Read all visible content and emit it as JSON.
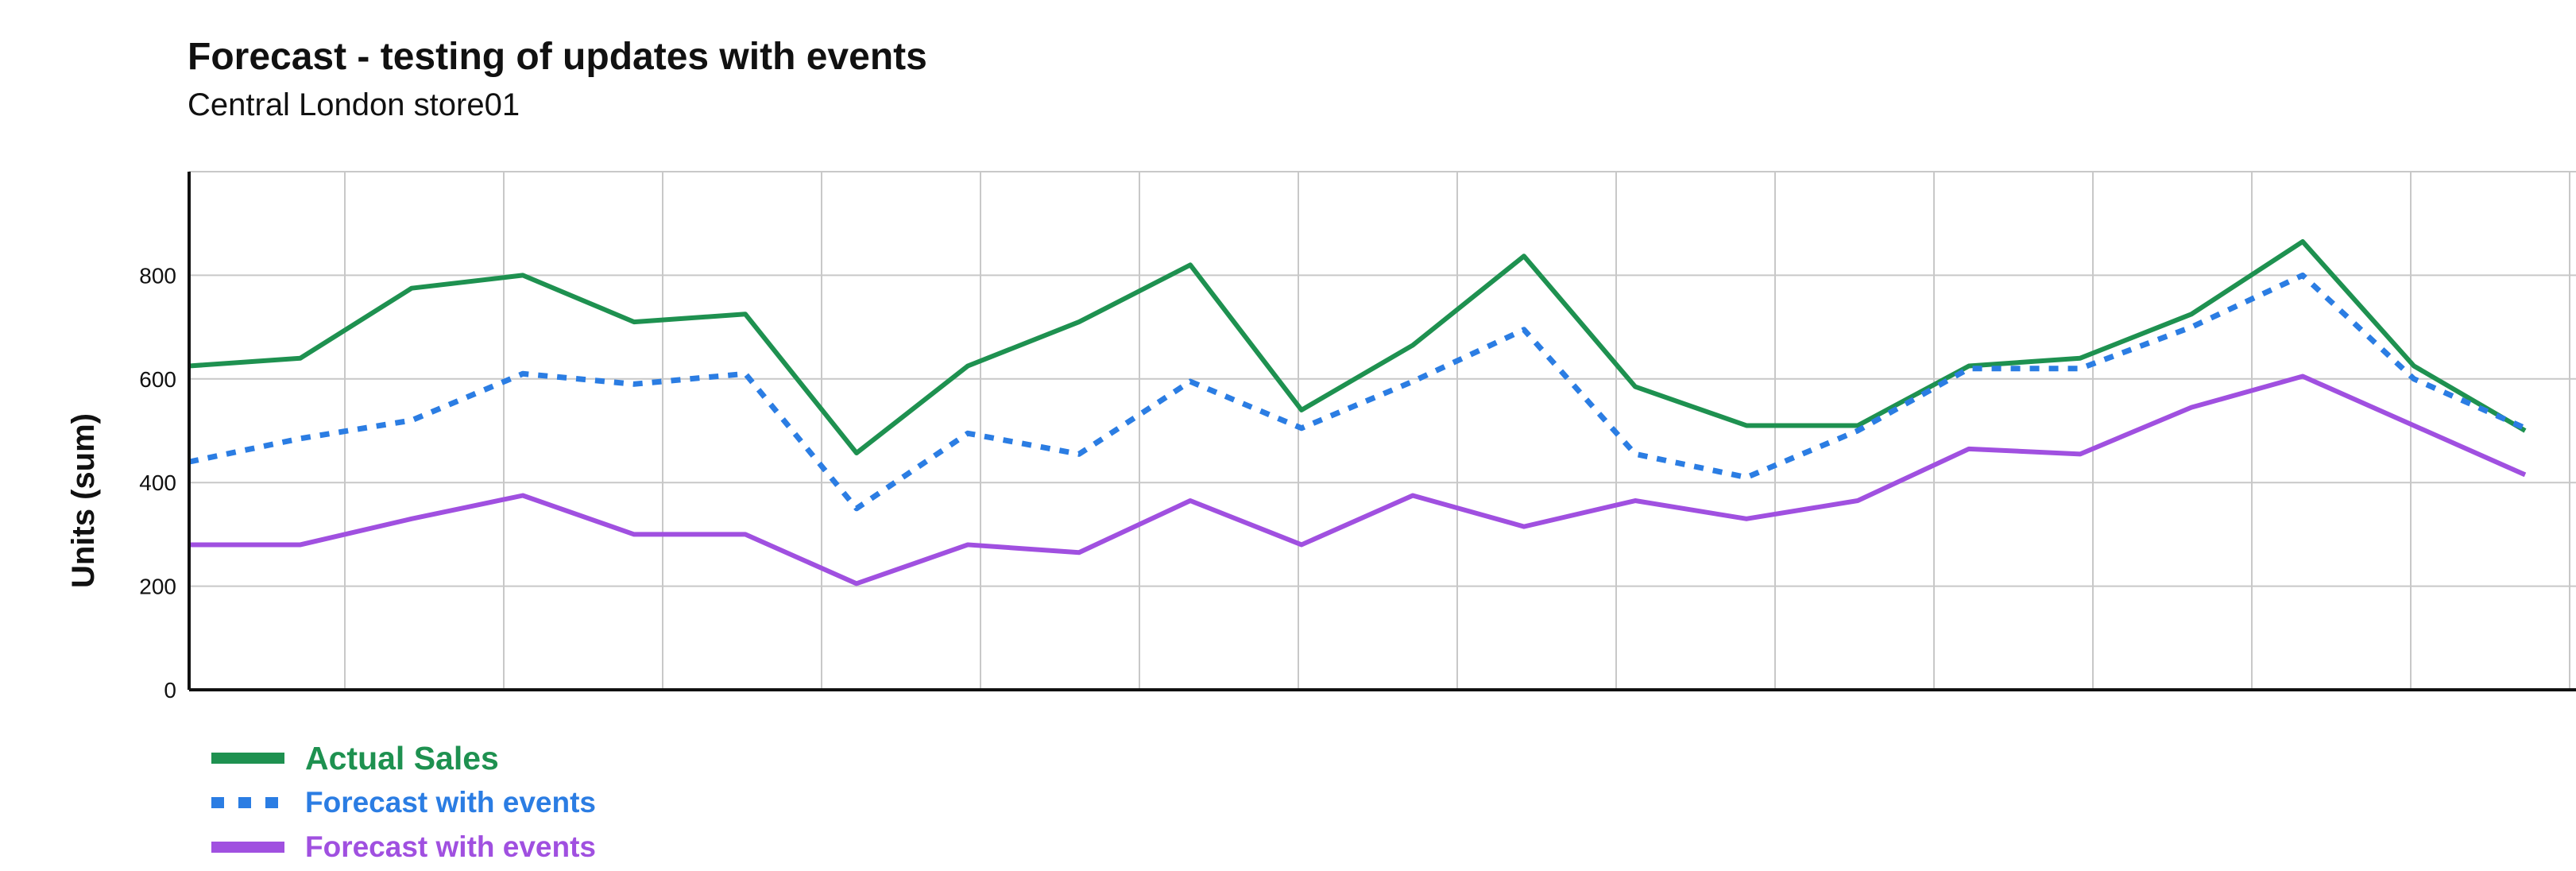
{
  "chart_data": {
    "type": "line",
    "title": "Forecast - testing of updates with events",
    "subtitle": "Central London store01",
    "xlabel": "",
    "ylabel": "Units (sum)",
    "ylim": [
      0,
      1000
    ],
    "y_ticks": [
      0,
      200,
      400,
      600,
      800
    ],
    "grid": true,
    "legend_position": "bottom-left",
    "x": [
      0,
      1,
      2,
      3,
      4,
      5,
      6,
      7,
      8,
      9,
      10,
      11,
      12,
      13,
      14,
      15,
      16,
      17,
      18,
      19,
      20,
      21
    ],
    "series": [
      {
        "name": "Actual Sales",
        "color": "#1e9150",
        "dash": "solid",
        "values": [
          625,
          640,
          775,
          800,
          710,
          725,
          457,
          625,
          710,
          820,
          540,
          665,
          837,
          585,
          510,
          510,
          625,
          640,
          725,
          865,
          625,
          500
        ]
      },
      {
        "name": "Forecast with events",
        "color": "#2b7de3",
        "dash": "dotted",
        "values": [
          440,
          485,
          520,
          610,
          590,
          610,
          350,
          495,
          455,
          595,
          505,
          595,
          695,
          455,
          410,
          500,
          620,
          620,
          700,
          800,
          600,
          505
        ]
      },
      {
        "name": "Forecast with events",
        "color": "#a050e0",
        "dash": "solid",
        "values": [
          280,
          280,
          330,
          375,
          300,
          300,
          205,
          280,
          265,
          365,
          280,
          375,
          315,
          365,
          330,
          365,
          465,
          455,
          545,
          605,
          510,
          415
        ]
      }
    ]
  }
}
